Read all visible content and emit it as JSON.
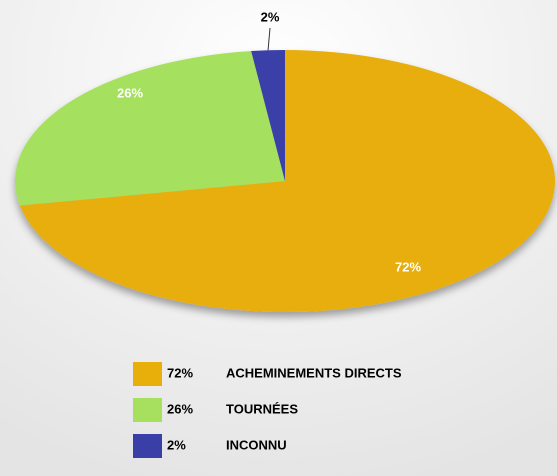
{
  "chart_data": {
    "type": "pie",
    "categories": [
      "ACHEMINEMENTS DIRECTS",
      "TOURNÉES",
      "INCONNU"
    ],
    "values": [
      72,
      26,
      2
    ],
    "value_labels": [
      "72%",
      "26%",
      "2%"
    ],
    "colors": [
      "#e8ae0a",
      "#a6e05e",
      "#3a3fa8"
    ],
    "legend": "bottom"
  }
}
